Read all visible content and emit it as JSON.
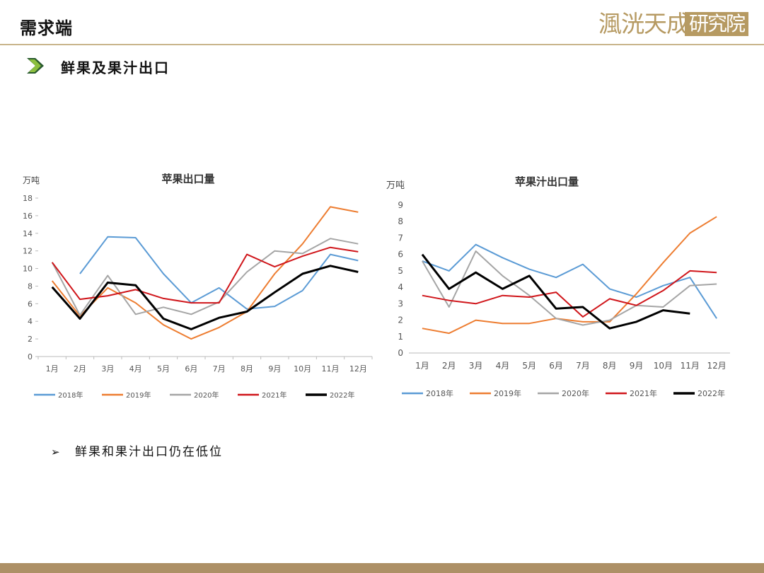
{
  "header": {
    "title": "需求端",
    "logo_text": "渢洸天成",
    "logo_box_text": "研究院"
  },
  "section": {
    "title": "鲜果及果汁出口"
  },
  "bullet": {
    "text": "鲜果和果汁出口仍在低位"
  },
  "chart_data": [
    {
      "type": "line",
      "title": "苹果出口量",
      "ylabel": "万吨",
      "ylim": [
        0,
        18
      ],
      "yticks": [
        0,
        2,
        4,
        6,
        8,
        10,
        12,
        14,
        16,
        18
      ],
      "categories": [
        "1月",
        "2月",
        "3月",
        "4月",
        "5月",
        "6月",
        "7月",
        "8月",
        "9月",
        "10月",
        "11月",
        "12月"
      ],
      "legend_position": "bottom",
      "series": [
        {
          "name": "2018年",
          "color": "#5b9bd5",
          "values": [
            null,
            9.4,
            13.6,
            13.5,
            9.4,
            6.1,
            7.8,
            5.4,
            5.7,
            7.5,
            11.6,
            10.9
          ]
        },
        {
          "name": "2019年",
          "color": "#ed7d31",
          "values": [
            8.6,
            4.6,
            7.8,
            6.1,
            3.6,
            2.0,
            3.3,
            5.1,
            9.4,
            12.8,
            17.0,
            16.4
          ]
        },
        {
          "name": "2020年",
          "color": "#a5a5a5",
          "values": [
            10.7,
            4.7,
            9.2,
            4.8,
            5.6,
            4.8,
            6.2,
            9.6,
            12.0,
            11.7,
            13.4,
            12.8
          ]
        },
        {
          "name": "2021年",
          "color": "#d0161b",
          "values": [
            10.7,
            6.5,
            6.9,
            7.6,
            6.6,
            6.1,
            6.1,
            11.6,
            10.2,
            11.4,
            12.4,
            11.9
          ]
        },
        {
          "name": "2022年",
          "color": "#000000",
          "values": [
            7.9,
            4.3,
            8.4,
            8.1,
            4.3,
            3.1,
            4.4,
            5.1,
            7.3,
            9.4,
            10.3,
            9.6
          ]
        }
      ]
    },
    {
      "type": "line",
      "title": "苹果汁出口量",
      "ylabel": "万吨",
      "ylim": [
        0,
        9
      ],
      "yticks": [
        0,
        1,
        2,
        3,
        4,
        5,
        6,
        7,
        8,
        9
      ],
      "categories": [
        "1月",
        "2月",
        "3月",
        "4月",
        "5月",
        "6月",
        "7月",
        "8月",
        "9月",
        "10月",
        "11月",
        "12月"
      ],
      "legend_position": "bottom",
      "series": [
        {
          "name": "2018年",
          "color": "#5b9bd5",
          "values": [
            5.6,
            5.0,
            6.6,
            5.8,
            5.1,
            4.6,
            5.4,
            3.9,
            3.4,
            4.1,
            4.6,
            2.1
          ]
        },
        {
          "name": "2019年",
          "color": "#ed7d31",
          "values": [
            1.5,
            1.2,
            2.0,
            1.8,
            1.8,
            2.1,
            1.9,
            1.9,
            3.6,
            5.5,
            7.3,
            8.3
          ]
        },
        {
          "name": "2020年",
          "color": "#a5a5a5",
          "values": [
            5.6,
            2.8,
            6.2,
            4.7,
            3.5,
            2.1,
            1.7,
            2.0,
            2.9,
            2.8,
            4.1,
            4.2
          ]
        },
        {
          "name": "2021年",
          "color": "#d0161b",
          "values": [
            3.5,
            3.2,
            3.0,
            3.5,
            3.4,
            3.7,
            2.2,
            3.3,
            2.9,
            3.8,
            5.0,
            4.9
          ]
        },
        {
          "name": "2022年",
          "color": "#000000",
          "values": [
            6.0,
            3.9,
            4.9,
            3.9,
            4.7,
            2.7,
            2.8,
            1.5,
            1.9,
            2.6,
            2.4,
            null
          ]
        }
      ]
    }
  ]
}
